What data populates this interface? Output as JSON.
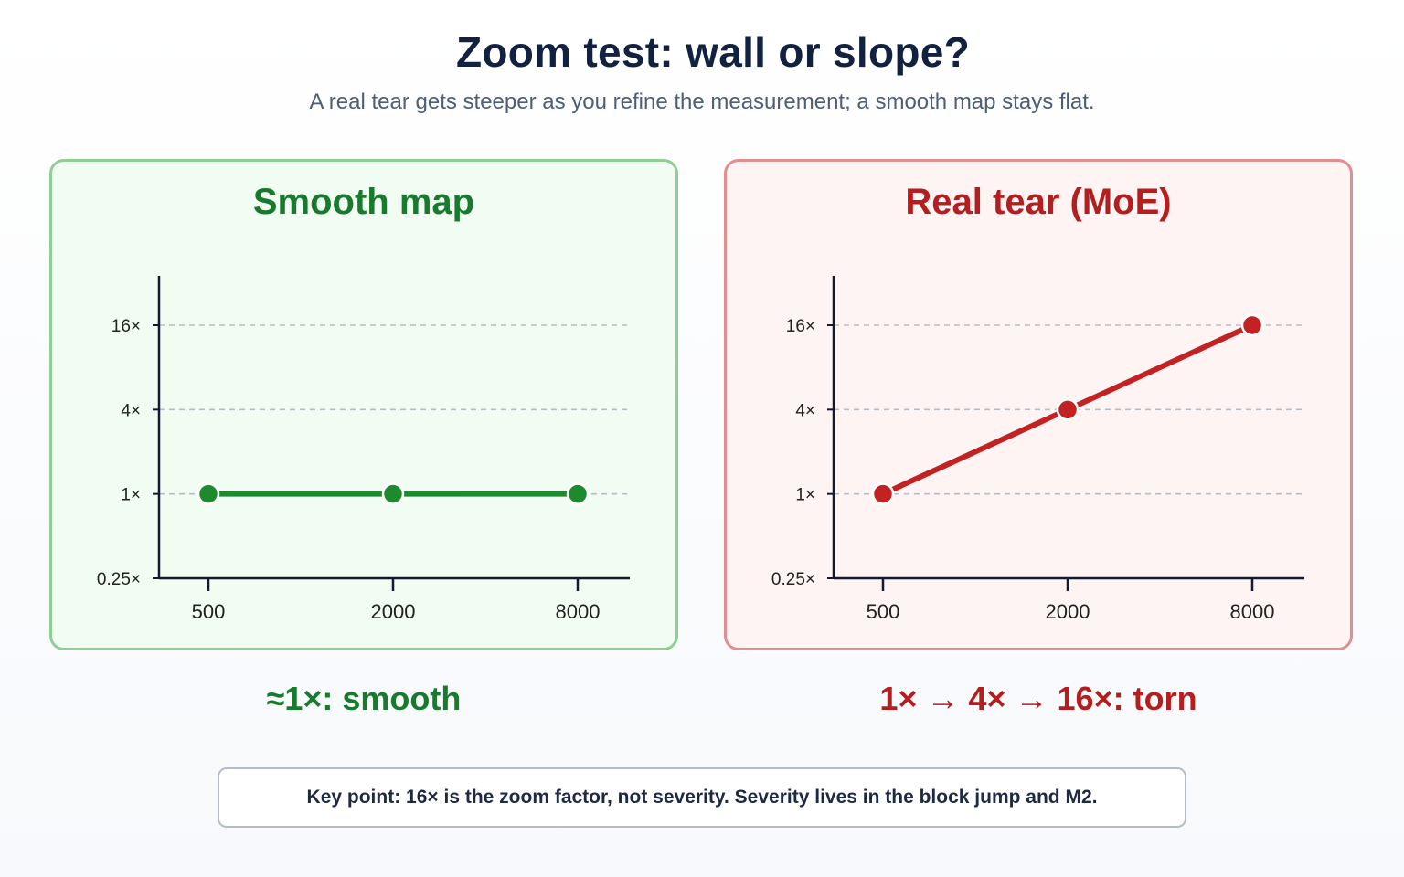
{
  "title": "Zoom test: wall or slope?",
  "subtitle": "A real tear gets steeper as you refine the measurement; a smooth map stays flat.",
  "colors": {
    "smooth_accent": "#1e8a2e",
    "tear_accent": "#c22222"
  },
  "chart_data": [
    {
      "type": "line",
      "title": "Smooth map",
      "x": [
        500,
        2000,
        8000
      ],
      "x_tick_labels": [
        "500",
        "2000",
        "8000"
      ],
      "x_scale": "log",
      "y": [
        1,
        1,
        1
      ],
      "y_ticks": [
        0.25,
        1,
        4,
        16
      ],
      "y_tick_labels": [
        "0.25×",
        "1×",
        "4×",
        "16×"
      ],
      "y_scale": "log",
      "grid": "horizontal dashed"
    },
    {
      "type": "line",
      "title": "Real tear (MoE)",
      "x": [
        500,
        2000,
        8000
      ],
      "x_tick_labels": [
        "500",
        "2000",
        "8000"
      ],
      "x_scale": "log",
      "y": [
        1,
        4,
        16
      ],
      "y_ticks": [
        0.25,
        1,
        4,
        16
      ],
      "y_tick_labels": [
        "0.25×",
        "1×",
        "4×",
        "16×"
      ],
      "y_scale": "log",
      "grid": "horizontal dashed"
    }
  ],
  "verdicts": {
    "smooth": "≈1×: smooth",
    "tear": "1× → 4× → 16×: torn"
  },
  "key_point": "Key point: 16× is the zoom factor, not severity. Severity lives in the block jump and M2."
}
